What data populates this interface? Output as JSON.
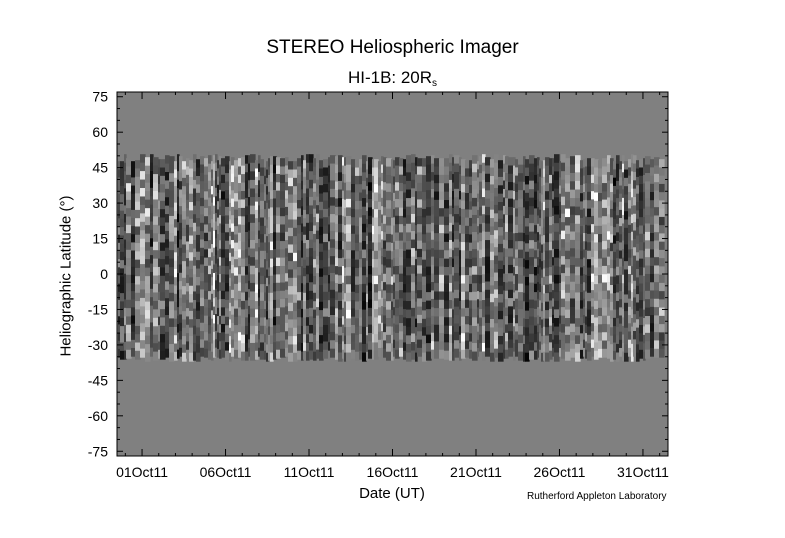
{
  "chart_data": {
    "type": "heatmap",
    "title": "STEREO Heliospheric Imager",
    "subtitle_main": "HI-1B: 20R",
    "subtitle_sub": "s",
    "xlabel": "Date (UT)",
    "ylabel": "Heliographic Latitude (°)",
    "credit": "Rutherford Appleton Laboratory",
    "x_ticks": [
      "01Oct11",
      "06Oct11",
      "11Oct11",
      "16Oct11",
      "21Oct11",
      "26Oct11",
      "31Oct11"
    ],
    "x_tick_days": [
      0,
      5,
      10,
      15,
      20,
      25,
      30
    ],
    "xlim_days": [
      -1.5,
      31.5
    ],
    "y_ticks": [
      75,
      60,
      45,
      30,
      15,
      0,
      -15,
      -30,
      -45,
      -60,
      -75
    ],
    "ylim": [
      -77,
      77
    ],
    "data_latitude_range": [
      -36,
      49
    ],
    "background_color": "#808080",
    "colormap": "grayscale"
  }
}
